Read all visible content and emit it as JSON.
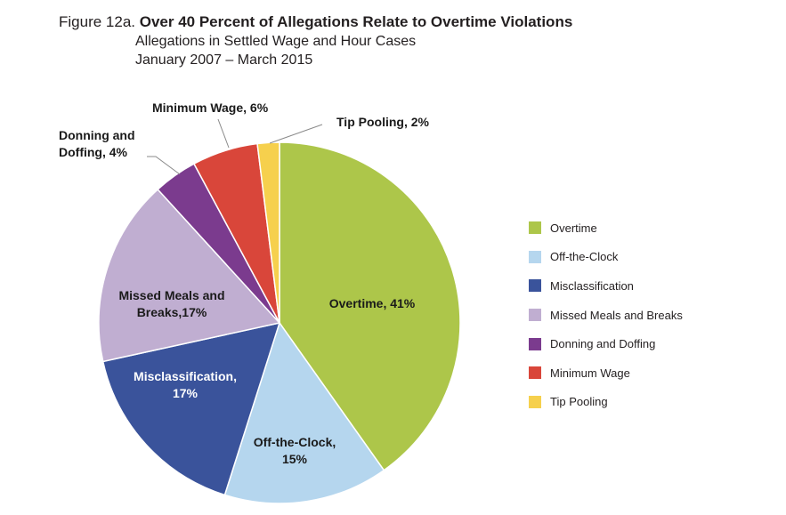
{
  "header": {
    "figure_label": "Figure 12a.",
    "title": "Over 40 Percent of Allegations Relate to Overtime Violations",
    "subtitle_1": "Allegations in Settled Wage and Hour Cases",
    "subtitle_2": "January 2007 – March 2015"
  },
  "chart_data": {
    "type": "pie",
    "title": "Over 40 Percent of Allegations Relate to Overtime Violations",
    "legend_position": "right",
    "slices": [
      {
        "name": "Overtime",
        "value": 41,
        "color": "#adc64a",
        "label_lines": [
          "Overtime, 41%"
        ]
      },
      {
        "name": "Off-the-Clock",
        "value": 15,
        "color": "#b5d6ee",
        "label_lines": [
          "Off-the-Clock,",
          "15%"
        ]
      },
      {
        "name": "Misclassification",
        "value": 17,
        "color": "#3a539b",
        "label_lines": [
          "Misclassification,",
          "17%"
        ]
      },
      {
        "name": "Missed Meals and Breaks",
        "value": 17,
        "color": "#c0aed1",
        "label_lines": [
          "Missed Meals and",
          "Breaks,17%"
        ]
      },
      {
        "name": "Donning and Doffing",
        "value": 4,
        "color": "#7b3b8e",
        "label_lines": [
          "Donning and",
          "Doffing, 4%"
        ]
      },
      {
        "name": "Minimum Wage",
        "value": 6,
        "color": "#d9463a",
        "label_lines": [
          "Minimum Wage, 6%"
        ]
      },
      {
        "name": "Tip Pooling",
        "value": 2,
        "color": "#f6d04d",
        "label_lines": [
          "Tip Pooling, 2%"
        ]
      }
    ]
  }
}
